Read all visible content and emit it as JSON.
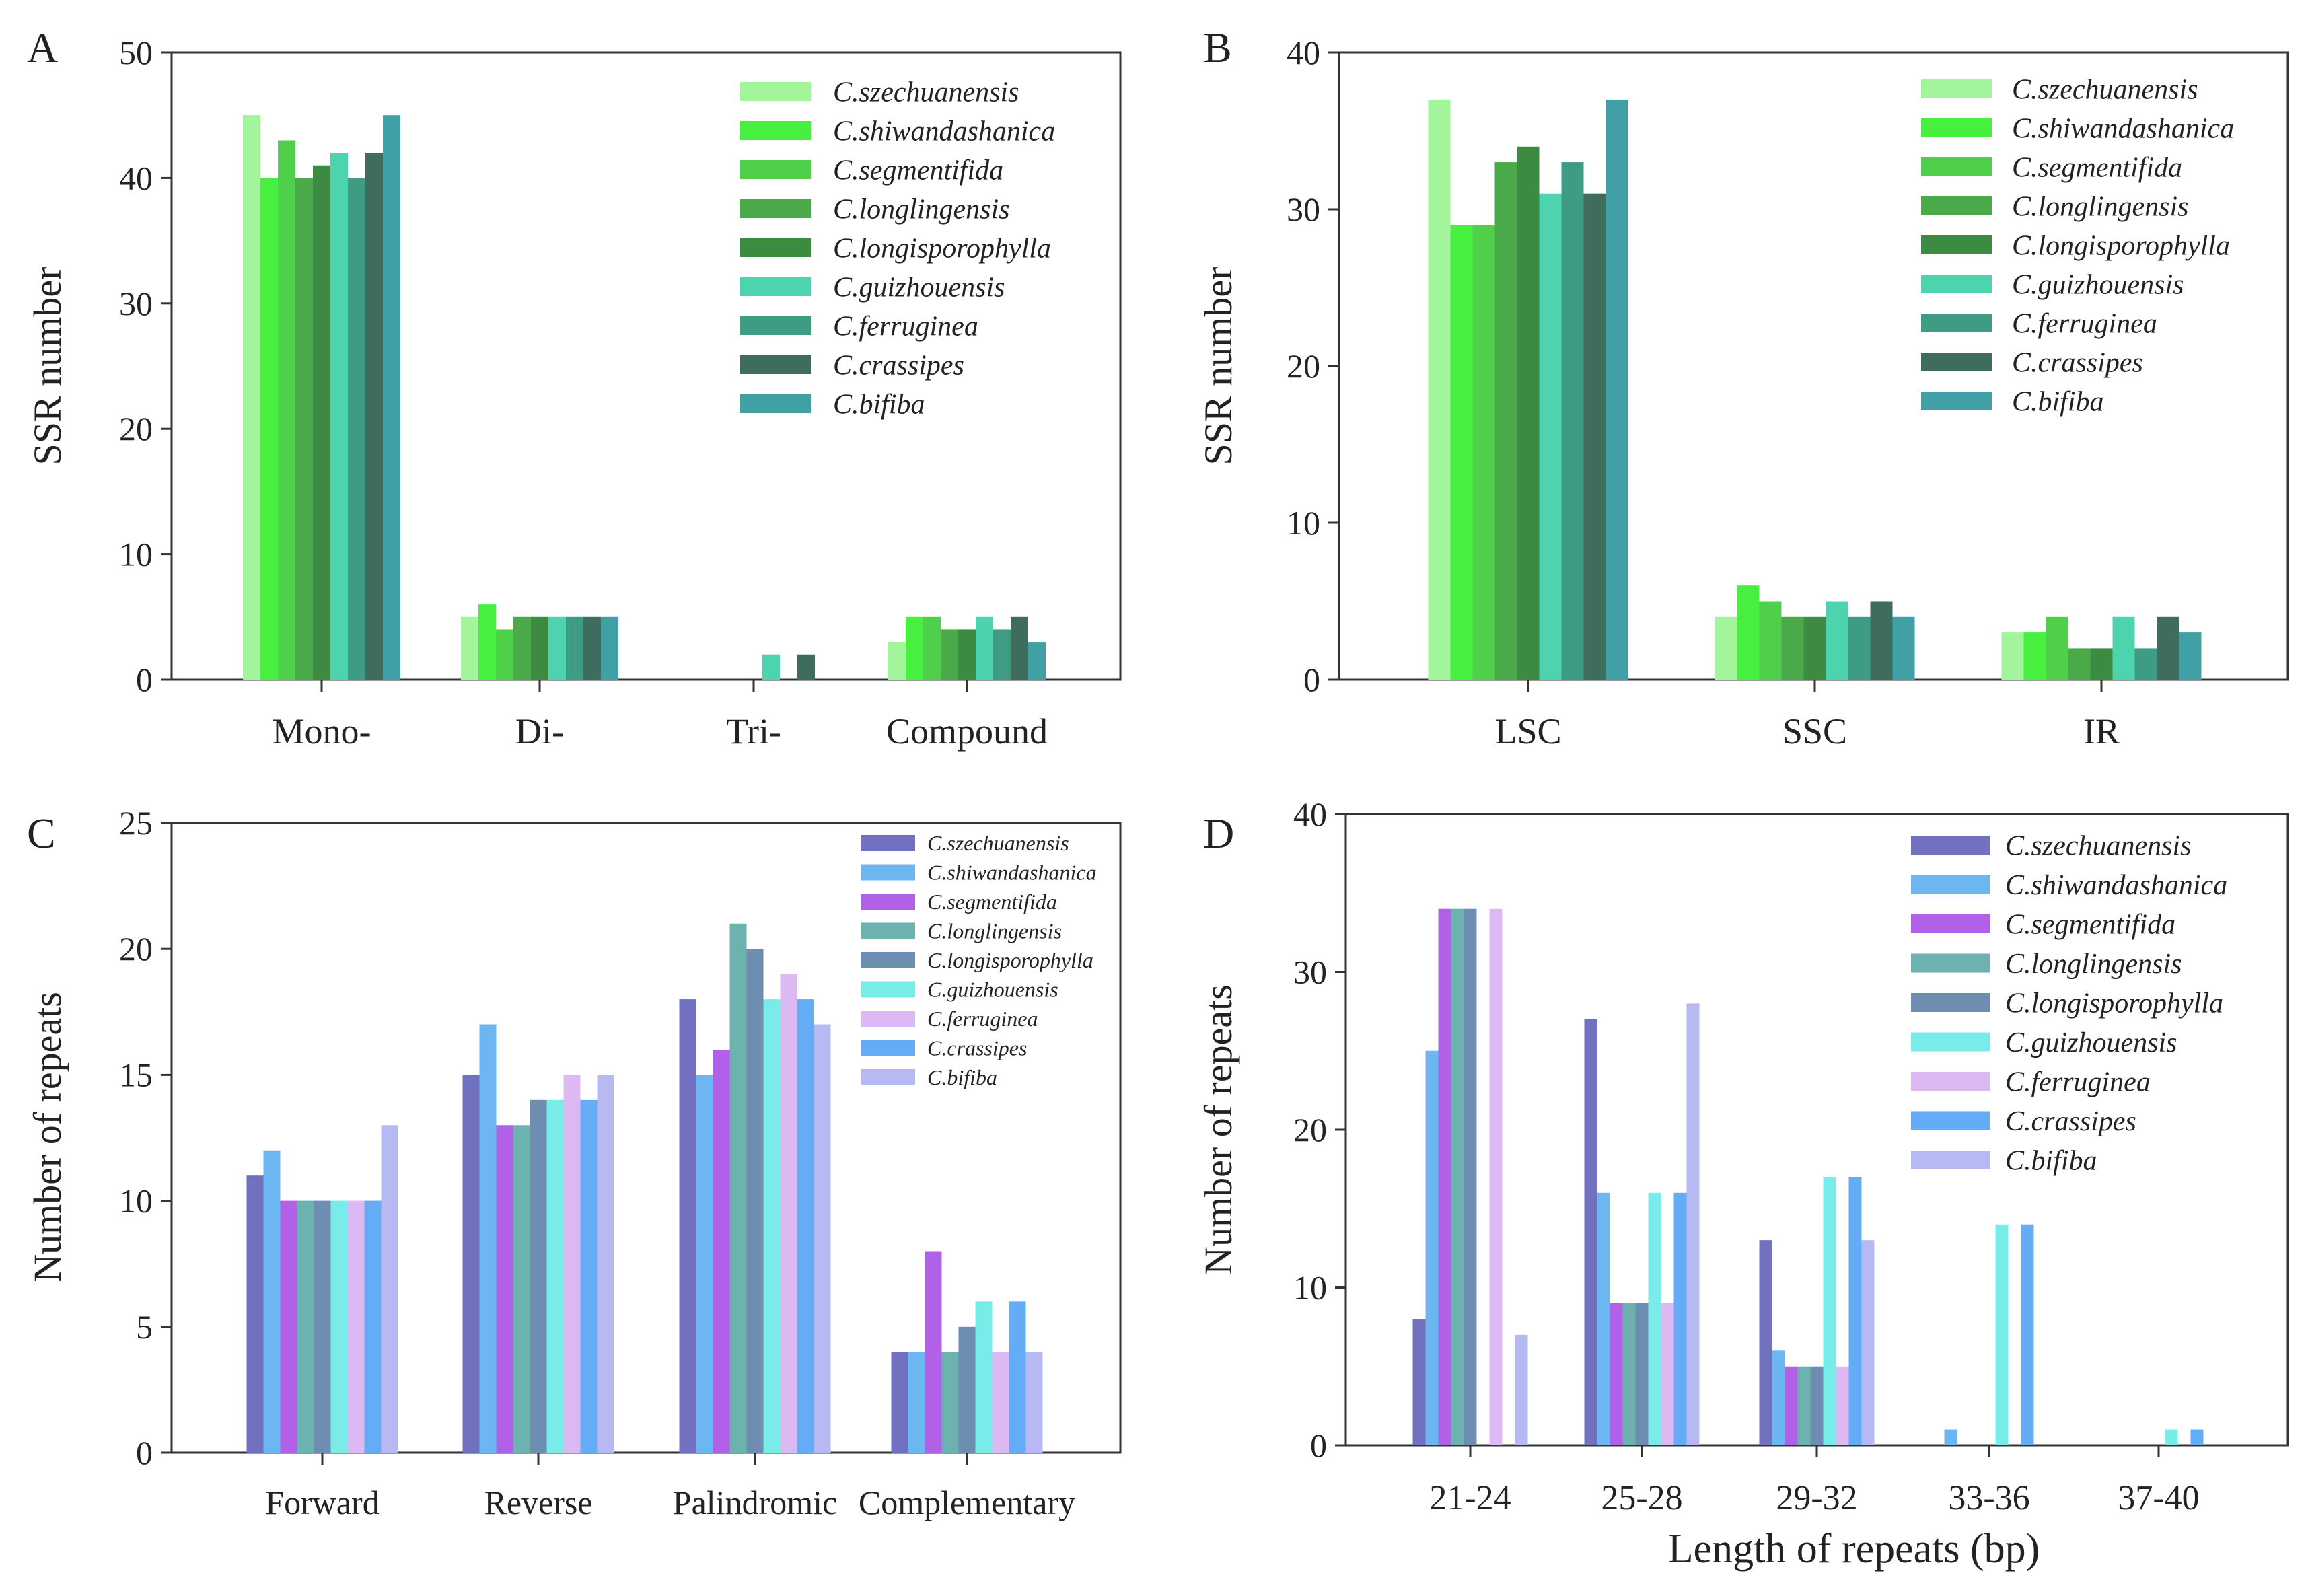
{
  "colors": {
    "green_palette": [
      "#a3f59b",
      "#47ef3f",
      "#4fcf4a",
      "#4aaa4a",
      "#3d8a43",
      "#4dd4ae",
      "#3e9b84",
      "#3e6d5e",
      "#40a0a5"
    ],
    "repeat_palette": [
      "#7171bf",
      "#6cb6f2",
      "#b161e8",
      "#6cb2af",
      "#6d8db1",
      "#79ebe9",
      "#dcb9f2",
      "#64acf5",
      "#b7b9f2"
    ]
  },
  "chart_data": [
    {
      "panel": "A",
      "type": "bar",
      "title": "",
      "xlabel": "",
      "ylabel": "SSR number",
      "ylim": [
        0,
        50
      ],
      "yticks": [
        "0",
        "10",
        "20",
        "30",
        "40",
        "50"
      ],
      "legend_position": "top-right",
      "categories": [
        "Mono-",
        "Di-",
        "Tri-",
        "Compound"
      ],
      "series": [
        {
          "name": "C.szechuanensis",
          "values": [
            45,
            5,
            0,
            3
          ]
        },
        {
          "name": "C.shiwandashanica",
          "values": [
            40,
            6,
            0,
            5
          ]
        },
        {
          "name": "C.segmentifida",
          "values": [
            43,
            4,
            0,
            5
          ]
        },
        {
          "name": "C.longlingensis",
          "values": [
            40,
            5,
            0,
            4
          ]
        },
        {
          "name": "C.longisporophylla",
          "values": [
            41,
            5,
            0,
            4
          ]
        },
        {
          "name": "C.guizhouensis",
          "values": [
            42,
            5,
            2,
            5
          ]
        },
        {
          "name": "C.ferruginea",
          "values": [
            40,
            5,
            0,
            4
          ]
        },
        {
          "name": "C.crassipes",
          "values": [
            42,
            5,
            2,
            5
          ]
        },
        {
          "name": "C.bifiba",
          "values": [
            45,
            5,
            0,
            3
          ]
        }
      ]
    },
    {
      "panel": "B",
      "type": "bar",
      "title": "",
      "xlabel": "",
      "ylabel": "SSR number",
      "ylim": [
        0,
        40
      ],
      "yticks": [
        "0",
        "10",
        "20",
        "30",
        "40"
      ],
      "legend_position": "top-right",
      "categories": [
        "LSC",
        "SSC",
        "IR"
      ],
      "series": [
        {
          "name": "C.szechuanensis",
          "values": [
            37,
            4,
            3
          ]
        },
        {
          "name": "C.shiwandashanica",
          "values": [
            29,
            6,
            3
          ]
        },
        {
          "name": "C.segmentifida",
          "values": [
            29,
            5,
            4
          ]
        },
        {
          "name": "C.longlingensis",
          "values": [
            33,
            4,
            2
          ]
        },
        {
          "name": "C.longisporophylla",
          "values": [
            34,
            4,
            2
          ]
        },
        {
          "name": "C.guizhouensis",
          "values": [
            31,
            5,
            4
          ]
        },
        {
          "name": "C.ferruginea",
          "values": [
            33,
            4,
            2
          ]
        },
        {
          "name": "C.crassipes",
          "values": [
            31,
            5,
            4
          ]
        },
        {
          "name": "C.bifiba",
          "values": [
            37,
            4,
            3
          ]
        }
      ]
    },
    {
      "panel": "C",
      "type": "bar",
      "title": "",
      "xlabel": "",
      "ylabel": "Number of repeats",
      "ylim": [
        0,
        25
      ],
      "yticks": [
        "0",
        "5",
        "10",
        "15",
        "20",
        "25"
      ],
      "legend_position": "top-right",
      "categories": [
        "Forward",
        "Reverse",
        "Palindromic",
        "Complementary"
      ],
      "series": [
        {
          "name": "C.szechuanensis",
          "values": [
            11,
            15,
            18,
            4
          ]
        },
        {
          "name": "C.shiwandashanica",
          "values": [
            12,
            17,
            15,
            4
          ]
        },
        {
          "name": "C.segmentifida",
          "values": [
            10,
            13,
            16,
            8
          ]
        },
        {
          "name": "C.longlingensis",
          "values": [
            10,
            13,
            21,
            4
          ]
        },
        {
          "name": "C.longisporophylla",
          "values": [
            10,
            14,
            20,
            5
          ]
        },
        {
          "name": "C.guizhouensis",
          "values": [
            10,
            14,
            18,
            6
          ]
        },
        {
          "name": "C.ferruginea",
          "values": [
            10,
            15,
            19,
            4
          ]
        },
        {
          "name": "C.crassipes",
          "values": [
            10,
            14,
            18,
            6
          ]
        },
        {
          "name": "C.bifiba",
          "values": [
            13,
            15,
            17,
            4
          ]
        }
      ]
    },
    {
      "panel": "D",
      "type": "bar",
      "title": "",
      "xlabel": "Length of repeats (bp)",
      "ylabel": "Number of repeats",
      "ylim": [
        0,
        40
      ],
      "yticks": [
        "0",
        "10",
        "20",
        "30",
        "40"
      ],
      "legend_position": "top-right",
      "categories": [
        "21-24",
        "25-28",
        "29-32",
        "33-36",
        "37-40"
      ],
      "series": [
        {
          "name": "C.szechuanensis",
          "values": [
            8,
            27,
            13,
            0,
            0
          ]
        },
        {
          "name": "C.shiwandashanica",
          "values": [
            25,
            16,
            6,
            1,
            0
          ]
        },
        {
          "name": "C.segmentifida",
          "values": [
            34,
            9,
            5,
            0,
            0
          ]
        },
        {
          "name": "C.longlingensis",
          "values": [
            34,
            9,
            5,
            0,
            0
          ]
        },
        {
          "name": "C.longisporophylla",
          "values": [
            34,
            9,
            5,
            0,
            0
          ]
        },
        {
          "name": "C.guizhouensis",
          "values": [
            0,
            16,
            17,
            14,
            1
          ]
        },
        {
          "name": "C.ferruginea",
          "values": [
            34,
            9,
            5,
            0,
            0
          ]
        },
        {
          "name": "C.crassipes",
          "values": [
            0,
            16,
            17,
            14,
            1
          ]
        },
        {
          "name": "C.bifiba",
          "values": [
            7,
            28,
            13,
            0,
            0
          ]
        }
      ]
    }
  ]
}
